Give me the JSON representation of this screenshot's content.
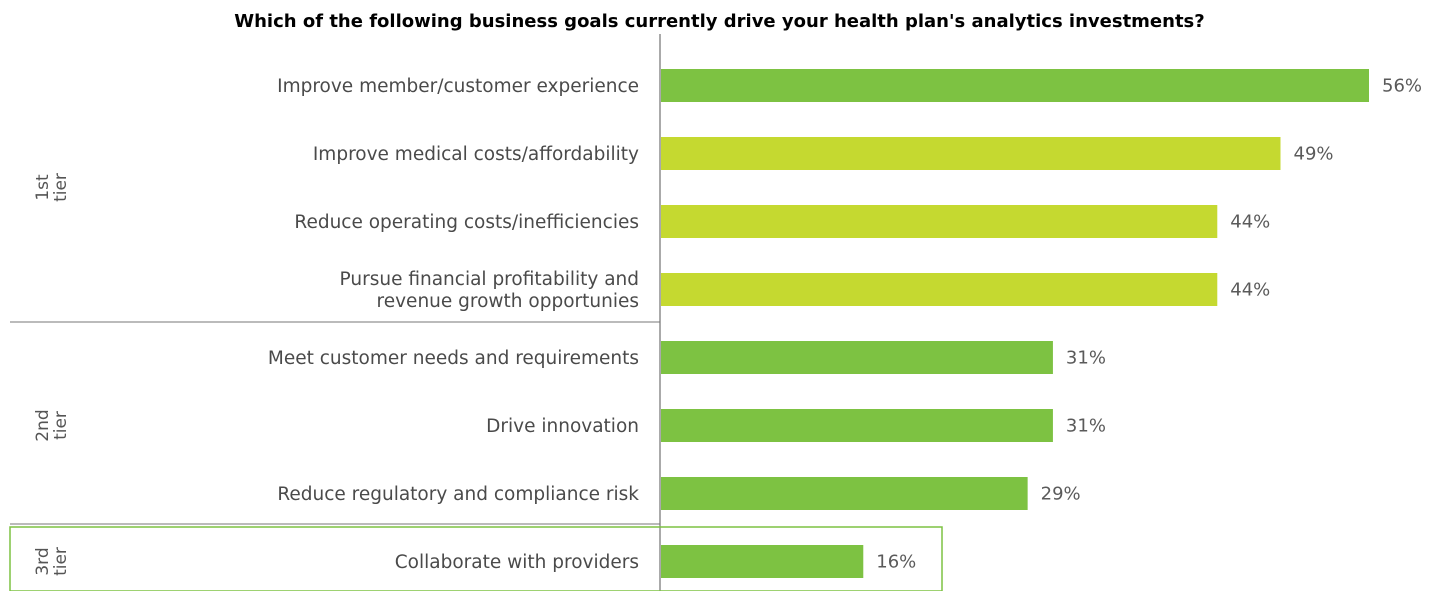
{
  "chart_data": {
    "type": "bar",
    "orientation": "horizontal",
    "title": "Which of the following business goals currently drive your health plan's analytics investments?",
    "categories": [
      [
        "Improve member/customer experience"
      ],
      [
        "Improve medical costs/affordability"
      ],
      [
        "Reduce operating costs/inefficiencies"
      ],
      [
        "Pursue financial profitability and",
        "revenue growth opportunies"
      ],
      [
        "Meet customer needs and requirements"
      ],
      [
        "Drive innovation"
      ],
      [
        "Reduce regulatory and compliance risk"
      ],
      [
        "Collaborate with providers"
      ]
    ],
    "values": [
      56,
      49,
      44,
      44,
      31,
      31,
      29,
      16
    ],
    "value_labels": [
      "56%",
      "49%",
      "44%",
      "44%",
      "31%",
      "31%",
      "29%",
      "16%"
    ],
    "bar_colors": [
      "#7dc242",
      "#c5d930",
      "#c5d930",
      "#c5d930",
      "#7dc242",
      "#7dc242",
      "#7dc242",
      "#7dc242"
    ],
    "xlim": [
      0,
      56
    ],
    "grid": false,
    "tiers": [
      {
        "lines": [
          "1st",
          "tier"
        ],
        "start": 0,
        "end": 3
      },
      {
        "lines": [
          "2nd",
          "tier"
        ],
        "start": 4,
        "end": 6
      },
      {
        "lines": [
          "3rd",
          "tier"
        ],
        "start": 7,
        "end": 7
      }
    ],
    "colors": {
      "primary_green": "#7dc242",
      "highlight_yellow_green": "#c5d930",
      "text": "#4a4a4a",
      "axis": "#555555"
    }
  }
}
